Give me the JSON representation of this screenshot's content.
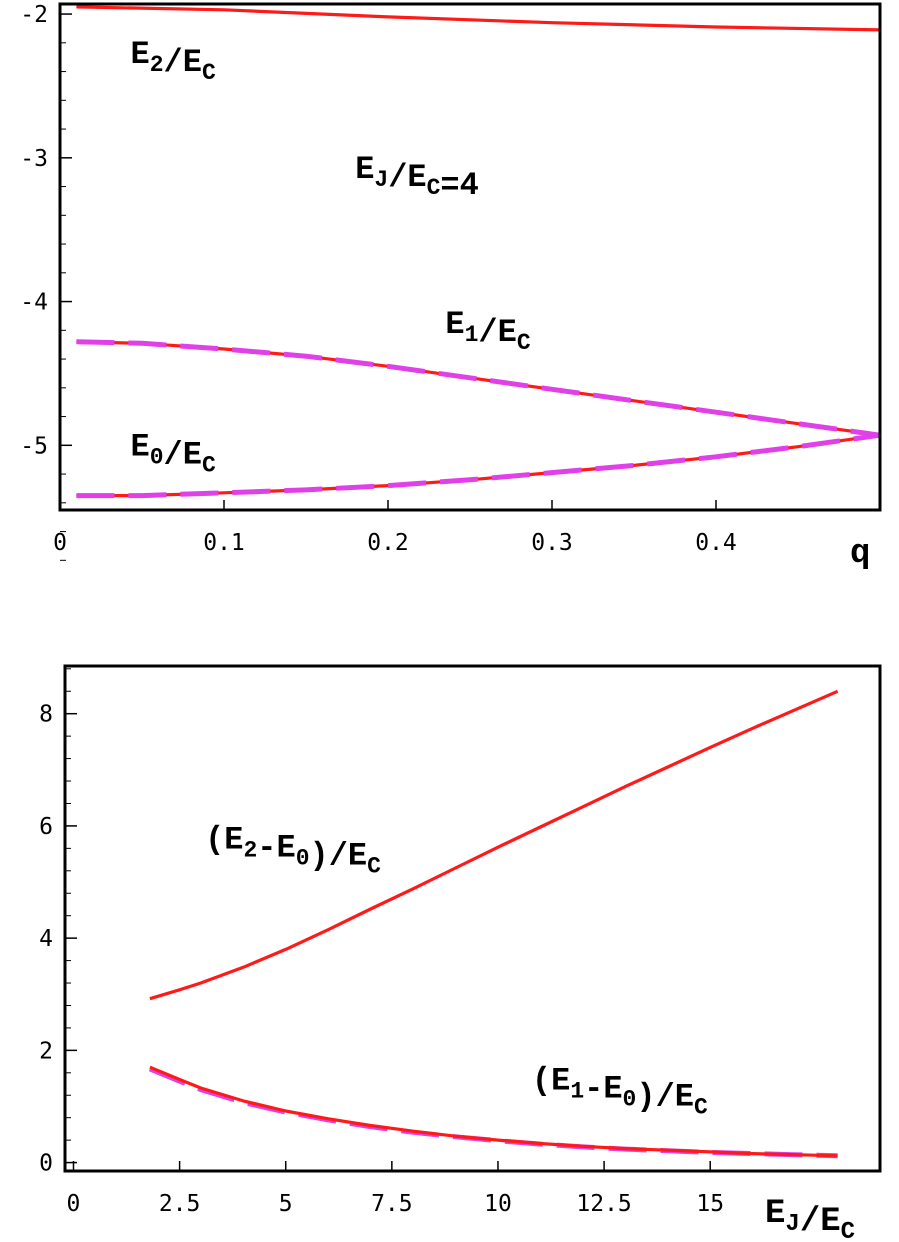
{
  "colors": {
    "solid": "#ff1a1a",
    "dashed": "#e040e8",
    "axes": "#000000"
  },
  "chart_data": [
    {
      "type": "line",
      "xlabel": "q",
      "ylabel": "",
      "xlim": [
        0,
        0.5
      ],
      "ylim": [
        -5.45,
        -1.93
      ],
      "xticks": [
        {
          "v": 0,
          "label": "0"
        },
        {
          "v": 0.1,
          "label": "0.1"
        },
        {
          "v": 0.2,
          "label": "0.2"
        },
        {
          "v": 0.3,
          "label": "0.3"
        },
        {
          "v": 0.4,
          "label": "0.4"
        }
      ],
      "yticks": [
        {
          "v": -2,
          "label": "-2"
        },
        {
          "v": -3,
          "label": "-3"
        },
        {
          "v": -4,
          "label": "-4"
        },
        {
          "v": -5,
          "label": "-5"
        }
      ],
      "series": [
        {
          "style": "solid",
          "x": [
            0.01,
            0.1,
            0.2,
            0.3,
            0.4,
            0.5
          ],
          "y": [
            -1.95,
            -1.97,
            -2.02,
            -2.06,
            -2.09,
            -2.11
          ]
        },
        {
          "style": "solid",
          "x": [
            0.01,
            0.05,
            0.1,
            0.15,
            0.2,
            0.25,
            0.3,
            0.35,
            0.4,
            0.45,
            0.5
          ],
          "y": [
            -4.28,
            -4.29,
            -4.33,
            -4.38,
            -4.45,
            -4.53,
            -4.61,
            -4.69,
            -4.77,
            -4.85,
            -4.93
          ]
        },
        {
          "style": "dashed",
          "x": [
            0.01,
            0.05,
            0.1,
            0.15,
            0.2,
            0.25,
            0.3,
            0.35,
            0.4,
            0.45,
            0.5
          ],
          "y": [
            -4.28,
            -4.29,
            -4.33,
            -4.38,
            -4.45,
            -4.53,
            -4.61,
            -4.69,
            -4.77,
            -4.85,
            -4.93
          ]
        },
        {
          "style": "solid",
          "x": [
            0.01,
            0.05,
            0.1,
            0.15,
            0.2,
            0.25,
            0.3,
            0.35,
            0.4,
            0.45,
            0.5
          ],
          "y": [
            -5.35,
            -5.35,
            -5.33,
            -5.31,
            -5.28,
            -5.24,
            -5.19,
            -5.14,
            -5.08,
            -5.01,
            -4.93
          ]
        },
        {
          "style": "dashed",
          "x": [
            0.01,
            0.05,
            0.1,
            0.15,
            0.2,
            0.25,
            0.3,
            0.35,
            0.4,
            0.45,
            0.5
          ],
          "y": [
            -5.35,
            -5.35,
            -5.33,
            -5.31,
            -5.28,
            -5.24,
            -5.19,
            -5.14,
            -5.08,
            -5.01,
            -4.93
          ]
        }
      ],
      "annotations": [
        {
          "base": "E",
          "sub": "2",
          "rest": "/E",
          "sub2": "C",
          "x": 0.043,
          "y": -2.34
        },
        {
          "base": "E",
          "sub": "J",
          "rest": "/E",
          "sub2": "C",
          "tail": "=4",
          "x": 0.18,
          "y": -3.14
        },
        {
          "base": "E",
          "sub": "1",
          "rest": "/E",
          "sub2": "C",
          "x": 0.235,
          "y": -4.22
        },
        {
          "base": "E",
          "sub": "0",
          "rest": "/E",
          "sub2": "C",
          "x": 0.043,
          "y": -5.07
        }
      ]
    },
    {
      "type": "line",
      "xlabel": "E_J/E_C",
      "ylabel": "",
      "xlim": [
        -0.2,
        19
      ],
      "ylim": [
        -0.15,
        8.85
      ],
      "xticks": [
        {
          "v": 0,
          "label": "0"
        },
        {
          "v": 2.5,
          "label": "2.5"
        },
        {
          "v": 5,
          "label": "5"
        },
        {
          "v": 7.5,
          "label": "7.5"
        },
        {
          "v": 10,
          "label": "10"
        },
        {
          "v": 12.5,
          "label": "12.5"
        },
        {
          "v": 15,
          "label": "15"
        }
      ],
      "yticks": [
        {
          "v": 0,
          "label": "0"
        },
        {
          "v": 2,
          "label": "2"
        },
        {
          "v": 4,
          "label": "4"
        },
        {
          "v": 6,
          "label": "6"
        },
        {
          "v": 8,
          "label": "8"
        }
      ],
      "series": [
        {
          "style": "solid",
          "x": [
            1.8,
            2.5,
            3,
            4,
            5,
            6,
            7,
            8,
            9,
            10,
            11,
            12,
            13,
            14,
            15,
            16,
            17,
            18
          ],
          "y": [
            2.92,
            3.08,
            3.2,
            3.48,
            3.8,
            4.15,
            4.52,
            4.88,
            5.25,
            5.62,
            5.98,
            6.34,
            6.7,
            7.05,
            7.4,
            7.74,
            8.07,
            8.4
          ]
        },
        {
          "style": "dashed",
          "x": [
            1.8,
            2.5,
            3,
            4,
            5,
            6,
            7,
            8,
            9,
            10,
            11,
            12,
            13,
            14,
            15,
            16,
            17,
            18
          ],
          "y": [
            1.67,
            1.45,
            1.3,
            1.07,
            0.9,
            0.76,
            0.64,
            0.54,
            0.46,
            0.39,
            0.33,
            0.28,
            0.24,
            0.21,
            0.18,
            0.16,
            0.14,
            0.12
          ]
        },
        {
          "style": "solid",
          "x": [
            1.8,
            2.5,
            3,
            4,
            5,
            6,
            7,
            8,
            9,
            10,
            11,
            12,
            13,
            14,
            15,
            16,
            17,
            18
          ],
          "y": [
            1.7,
            1.48,
            1.33,
            1.1,
            0.92,
            0.78,
            0.66,
            0.56,
            0.47,
            0.4,
            0.34,
            0.29,
            0.25,
            0.22,
            0.19,
            0.16,
            0.14,
            0.12
          ]
        }
      ],
      "annotations": [
        {
          "pre": "(",
          "base": "E",
          "sub": "2",
          "rest": "-E",
          "sub2": "0",
          "tail": ")/E",
          "sub3": "C",
          "x": 3.1,
          "y": 5.6
        },
        {
          "pre": "(",
          "base": "E",
          "sub": "1",
          "rest": "-E",
          "sub2": "0",
          "tail": ")/E",
          "sub3": "C",
          "x": 10.8,
          "y": 1.3
        }
      ]
    }
  ]
}
